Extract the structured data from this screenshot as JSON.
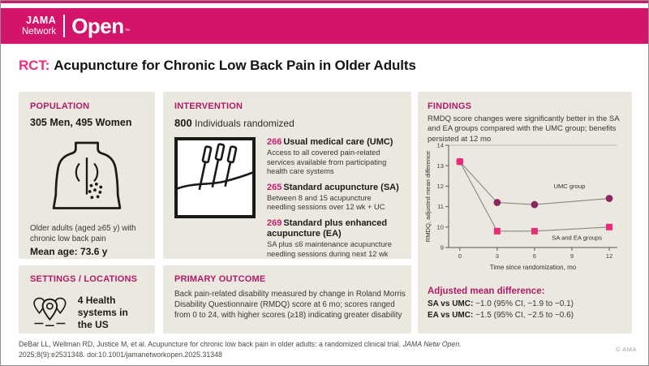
{
  "header": {
    "logo_jama": "JAMA",
    "logo_network": "Network",
    "logo_open": "Open",
    "logo_tm": "™"
  },
  "title": {
    "tag": "RCT:",
    "text": "Acupuncture for Chronic Low Back Pain in Older Adults"
  },
  "population": {
    "heading": "POPULATION",
    "demographics": "305 Men, 495 Women",
    "icon": "back-pain-icon",
    "description": "Older adults (aged ≥65 y) with chronic low back pain",
    "mean_age": "Mean age: 73.6 y"
  },
  "intervention": {
    "heading": "INTERVENTION",
    "total": "800",
    "total_label": " Individuals randomized",
    "icon": "acupuncture-needles-icon",
    "groups": [
      {
        "n": "266",
        "name": "Usual medical care (UMC)",
        "description": "Access to all covered pain-related services available from participating health care systems"
      },
      {
        "n": "265",
        "name": "Standard acupuncture (SA)",
        "description": "Between 8 and 15 acupuncture needling sessions over 12 wk + UC"
      },
      {
        "n": "269",
        "name": "Standard plus enhanced acupuncture (EA)",
        "description": "SA plus ≤6 maintenance acupuncture needling sessions during next 12 wk"
      }
    ]
  },
  "settings": {
    "heading": "SETTINGS / LOCATIONS",
    "icon": "map-pins-icon",
    "text": "4 Health systems in the US"
  },
  "primary_outcome": {
    "heading": "PRIMARY OUTCOME",
    "text": "Back pain-related disability measured by change in Roland Morris Disability Questionnaire (RMDQ) score at 6 mo; scores ranged from 0 to 24, with higher scores (≥18) indicating greater disability"
  },
  "findings": {
    "heading": "FINDINGS",
    "summary": "RMDQ score changes were significantly better in the SA and EA groups compared with the UMC group; benefits persisted at 12 mo",
    "adjusted_heading": "Adjusted mean difference:",
    "comparisons": [
      {
        "label": "SA vs UMC:",
        "value": " −1.0 (95% CI, −1.9 to −0.1)"
      },
      {
        "label": "EA vs UMC:",
        "value": " −1.5 (95% CI, −2.5 to −0.6)"
      }
    ]
  },
  "chart_data": {
    "type": "line",
    "title": "",
    "xlabel": "Time since randomization, mo",
    "ylabel": "RMDQ, adjusted mean difference",
    "x": [
      0,
      3,
      6,
      12
    ],
    "series": [
      {
        "name": "UMC group",
        "values": [
          13.2,
          11.2,
          11.1,
          11.4
        ],
        "marker": "circle",
        "color": "#8d2563",
        "label_at": {
          "x": 8.8,
          "y": 11.9
        }
      },
      {
        "name": "SA and EA groups",
        "values": [
          13.2,
          9.8,
          9.8,
          10.0
        ],
        "marker": "square",
        "color": "#ee2a7b",
        "label_at": {
          "x": 9.4,
          "y": 9.38
        }
      }
    ],
    "xticks": [
      0,
      3,
      6,
      9,
      12
    ],
    "yticks": [
      9,
      10,
      11,
      12,
      13,
      14
    ],
    "ylim": [
      9,
      14
    ],
    "xlim": [
      -0.9,
      12.65
    ],
    "grid": "top-rule-only",
    "legend_position": "inline-labels",
    "line_color": "#8b897e"
  },
  "footer": {
    "citation_line1": "DeBar LL, Wellman RD, Justice M, et al. Acupuncture for chronic low back pain in older adults: a randomized clinical trial. ",
    "citation_journal": "JAMA Netw Open.",
    "citation_line2": "2025;8(9):e2531348. doi:10.1001/jamanetworkopen.2025.31348",
    "copyright": "© AMA"
  },
  "colors": {
    "band": "#d4146a",
    "section_heading": "#b11a68",
    "title_tag": "#ee2e7d",
    "group_number": "#c41e72",
    "panel_bg": "#eae8df",
    "umc_marker": "#8d2563",
    "sa_ea_marker": "#ee2a7b",
    "chart_line": "#8b897e"
  }
}
